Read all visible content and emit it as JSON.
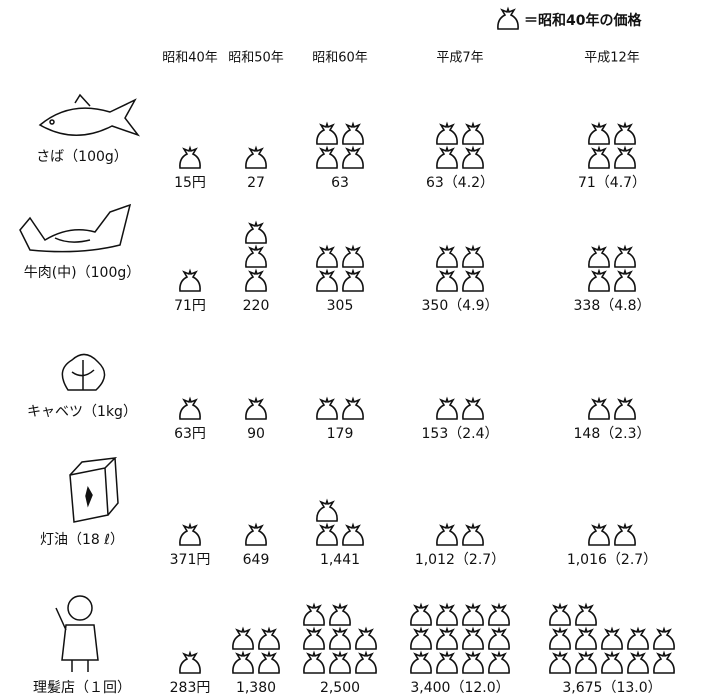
{
  "chart_data": {
    "type": "pictogram",
    "legend": "＝昭和40年の価格",
    "columns": [
      "昭和40年",
      "昭和50年",
      "昭和60年",
      "平成7年",
      "平成12年"
    ],
    "rows": [
      {
        "name": "さば（100g）",
        "values": [
          15,
          27,
          63,
          63,
          71
        ],
        "value_labels": [
          "15円",
          "27",
          "63",
          "63",
          "71"
        ],
        "ratios": [
          null,
          null,
          null,
          4.2,
          4.7
        ],
        "ratio_labels": [
          null,
          null,
          null,
          "（4.2）",
          "（4.7）"
        ]
      },
      {
        "name": "牛肉(中)（100g）",
        "values": [
          71,
          220,
          305,
          350,
          338
        ],
        "value_labels": [
          "71円",
          "220",
          "305",
          "350",
          "338"
        ],
        "ratios": [
          null,
          null,
          null,
          4.9,
          4.8
        ],
        "ratio_labels": [
          null,
          null,
          null,
          "（4.9）",
          "（4.8）"
        ]
      },
      {
        "name": "キャベツ（1kg）",
        "values": [
          63,
          90,
          179,
          153,
          148
        ],
        "value_labels": [
          "63円",
          "90",
          "179",
          "153",
          "148"
        ],
        "ratios": [
          null,
          null,
          null,
          2.4,
          2.3
        ],
        "ratio_labels": [
          null,
          null,
          null,
          "（2.4）",
          "（2.3）"
        ]
      },
      {
        "name": "灯油（18 ℓ）",
        "values": [
          371,
          649,
          1441,
          1012,
          1016
        ],
        "value_labels": [
          "371円",
          "649",
          "1,441",
          "1,012",
          "1,016"
        ],
        "ratios": [
          null,
          null,
          null,
          2.7,
          2.7
        ],
        "ratio_labels": [
          null,
          null,
          null,
          "（2.7）",
          "（2.7）"
        ]
      },
      {
        "name": "理髪店（１回）",
        "values": [
          283,
          1380,
          2500,
          3400,
          3675
        ],
        "value_labels": [
          "283円",
          "1,380",
          "2,500",
          "3,400",
          "3,675"
        ],
        "ratios": [
          null,
          null,
          null,
          12.0,
          13.0
        ],
        "ratio_labels": [
          null,
          null,
          null,
          "（12.0）",
          "（13.0）"
        ]
      }
    ]
  }
}
